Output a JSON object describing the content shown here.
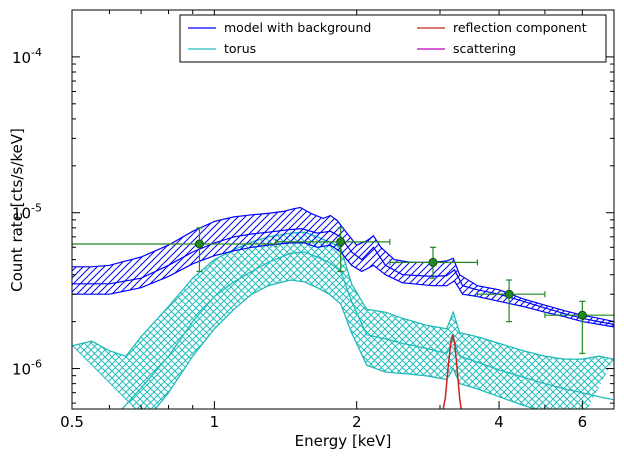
{
  "chart_data": {
    "type": "line",
    "xlabel": "Energy [keV]",
    "ylabel": "Count rate [cts/s/keV]",
    "x_scale": "log",
    "y_scale": "log",
    "xlim": [
      0.5,
      7.0
    ],
    "ylim": [
      5.5e-07,
      0.0002
    ],
    "legend_position": "top-right",
    "x_ticks": [
      {
        "value": 0.5,
        "label": "0.5"
      },
      {
        "value": 1,
        "label": "1"
      },
      {
        "value": 2,
        "label": "2"
      },
      {
        "value": 4,
        "label": "4"
      },
      {
        "value": 6,
        "label": "6"
      }
    ],
    "y_ticks": [
      {
        "value": 1e-06,
        "base": "10",
        "exp": "-6"
      },
      {
        "value": 1e-05,
        "base": "10",
        "exp": "-5"
      },
      {
        "value": 0.0001,
        "base": "10",
        "exp": "-4"
      }
    ],
    "legend": [
      {
        "label": "model with background",
        "color": "#0000ff"
      },
      {
        "label": "reflection component",
        "color": "#cc2222"
      },
      {
        "label": "torus",
        "color": "#22bbbb"
      },
      {
        "label": "scattering",
        "color": "#bb00bb"
      }
    ],
    "series": [
      {
        "name": "model with background",
        "color": "#0000ff",
        "style": "hatched band",
        "upper": [
          [
            0.5,
            4.5e-06
          ],
          [
            0.55,
            4.5e-06
          ],
          [
            0.6,
            4.6e-06
          ],
          [
            0.7,
            5.2e-06
          ],
          [
            0.8,
            6.2e-06
          ],
          [
            0.9,
            7.6e-06
          ],
          [
            1.0,
            8.8e-06
          ],
          [
            1.1,
            9.4e-06
          ],
          [
            1.2,
            9.7e-06
          ],
          [
            1.3,
            9.9e-06
          ],
          [
            1.4,
            1.02e-05
          ],
          [
            1.47,
            1.06e-05
          ],
          [
            1.52,
            1.08e-05
          ],
          [
            1.6,
            9.9e-06
          ],
          [
            1.7,
            9.2e-06
          ],
          [
            1.76,
            9.6e-06
          ],
          [
            1.82,
            8.9e-06
          ],
          [
            1.9,
            7.5e-06
          ],
          [
            2.0,
            6.2e-06
          ],
          [
            2.1,
            6.6e-06
          ],
          [
            2.17,
            7.1e-06
          ],
          [
            2.25,
            6e-06
          ],
          [
            2.4,
            5e-06
          ],
          [
            2.6,
            4.8e-06
          ],
          [
            2.9,
            4.8e-06
          ],
          [
            3.1,
            4.9e-06
          ],
          [
            3.2,
            5.1e-06
          ],
          [
            3.3,
            4e-06
          ],
          [
            3.6,
            3.4e-06
          ],
          [
            4.0,
            3.2e-06
          ],
          [
            4.5,
            2.8e-06
          ],
          [
            5.0,
            2.55e-06
          ],
          [
            5.5,
            2.35e-06
          ],
          [
            6.0,
            2.2e-06
          ],
          [
            6.5,
            2.1e-06
          ],
          [
            7.0,
            2e-06
          ]
        ],
        "lower": [
          [
            0.5,
            3e-06
          ],
          [
            0.6,
            3e-06
          ],
          [
            0.7,
            3.3e-06
          ],
          [
            0.8,
            3.9e-06
          ],
          [
            0.9,
            4.7e-06
          ],
          [
            1.0,
            5.3e-06
          ],
          [
            1.1,
            5.7e-06
          ],
          [
            1.2,
            6e-06
          ],
          [
            1.3,
            6.2e-06
          ],
          [
            1.45,
            6.4e-06
          ],
          [
            1.55,
            6.4e-06
          ],
          [
            1.65,
            6e-06
          ],
          [
            1.76,
            6.2e-06
          ],
          [
            1.85,
            5.6e-06
          ],
          [
            1.95,
            4.6e-06
          ],
          [
            2.05,
            4.2e-06
          ],
          [
            2.17,
            4.6e-06
          ],
          [
            2.3,
            4e-06
          ],
          [
            2.5,
            3.55e-06
          ],
          [
            2.9,
            3.4e-06
          ],
          [
            3.1,
            3.4e-06
          ],
          [
            3.22,
            3.65e-06
          ],
          [
            3.35,
            3e-06
          ],
          [
            3.6,
            2.9e-06
          ],
          [
            4.0,
            2.7e-06
          ],
          [
            4.5,
            2.5e-06
          ],
          [
            5.0,
            2.3e-06
          ],
          [
            5.5,
            2.15e-06
          ],
          [
            6.0,
            2e-06
          ],
          [
            6.5,
            1.92e-06
          ],
          [
            7.0,
            1.85e-06
          ]
        ],
        "middle": [
          [
            0.5,
            3.5e-06
          ],
          [
            0.6,
            3.5e-06
          ],
          [
            0.7,
            3.8e-06
          ],
          [
            0.8,
            4.6e-06
          ],
          [
            0.9,
            5.6e-06
          ],
          [
            1.0,
            6.4e-06
          ],
          [
            1.1,
            7e-06
          ],
          [
            1.2,
            7.3e-06
          ],
          [
            1.3,
            7.5e-06
          ],
          [
            1.45,
            7.8e-06
          ],
          [
            1.53,
            7.9e-06
          ],
          [
            1.65,
            7.4e-06
          ],
          [
            1.76,
            7.6e-06
          ],
          [
            1.85,
            7e-06
          ],
          [
            1.95,
            5.6e-06
          ],
          [
            2.05,
            5e-06
          ],
          [
            2.17,
            6e-06
          ],
          [
            2.3,
            4.6e-06
          ],
          [
            2.5,
            4e-06
          ],
          [
            2.9,
            3.9e-06
          ],
          [
            3.1,
            3.95e-06
          ],
          [
            3.22,
            4.3e-06
          ],
          [
            3.35,
            3.4e-06
          ],
          [
            3.6,
            3.2e-06
          ],
          [
            4.0,
            3e-06
          ],
          [
            4.5,
            2.7e-06
          ],
          [
            5.0,
            2.45e-06
          ],
          [
            5.5,
            2.25e-06
          ],
          [
            6.0,
            2.1e-06
          ],
          [
            6.5,
            2e-06
          ],
          [
            7.0,
            1.92e-06
          ]
        ]
      },
      {
        "name": "torus",
        "color": "#22bbbb",
        "style": "crosshatched band",
        "upper": [
          [
            0.5,
            1.4e-06
          ],
          [
            0.55,
            1.5e-06
          ],
          [
            0.6,
            1.3e-06
          ],
          [
            0.65,
            1.2e-06
          ],
          [
            0.7,
            1.6e-06
          ],
          [
            0.8,
            2.5e-06
          ],
          [
            0.9,
            3.8e-06
          ],
          [
            1.0,
            5e-06
          ],
          [
            1.1,
            5.8e-06
          ],
          [
            1.2,
            6.5e-06
          ],
          [
            1.3,
            7e-06
          ],
          [
            1.45,
            7.4e-06
          ],
          [
            1.55,
            7.5e-06
          ],
          [
            1.65,
            7e-06
          ],
          [
            1.75,
            6.5e-06
          ],
          [
            1.85,
            6e-06
          ],
          [
            1.95,
            3.5e-06
          ],
          [
            2.1,
            2.4e-06
          ],
          [
            2.3,
            2.3e-06
          ],
          [
            2.5,
            2.1e-06
          ],
          [
            2.8,
            1.9e-06
          ],
          [
            3.1,
            1.8e-06
          ],
          [
            3.2,
            2.3e-06
          ],
          [
            3.3,
            1.7e-06
          ],
          [
            3.6,
            1.6e-06
          ],
          [
            4.0,
            1.45e-06
          ],
          [
            4.5,
            1.3e-06
          ],
          [
            5.0,
            1.2e-06
          ],
          [
            5.5,
            1.15e-06
          ],
          [
            6.0,
            1.15e-06
          ],
          [
            6.5,
            1.2e-06
          ],
          [
            7.0,
            1.15e-06
          ]
        ],
        "lower": [
          [
            0.7,
            5e-07
          ],
          [
            0.75,
            5.5e-07
          ],
          [
            0.8,
            7e-07
          ],
          [
            0.9,
            1.2e-06
          ],
          [
            1.0,
            1.8e-06
          ],
          [
            1.1,
            2.4e-06
          ],
          [
            1.2,
            3e-06
          ],
          [
            1.3,
            3.4e-06
          ],
          [
            1.45,
            3.7e-06
          ],
          [
            1.55,
            3.6e-06
          ],
          [
            1.65,
            3.3e-06
          ],
          [
            1.75,
            3e-06
          ],
          [
            1.85,
            2.6e-06
          ],
          [
            1.95,
            1.7e-06
          ],
          [
            2.1,
            1.05e-06
          ],
          [
            2.3,
            9.5e-07
          ],
          [
            2.5,
            9.3e-07
          ],
          [
            2.8,
            9e-07
          ],
          [
            3.1,
            8.5e-07
          ],
          [
            3.2,
            1e-06
          ],
          [
            3.3,
            8e-07
          ],
          [
            3.6,
            7.4e-07
          ],
          [
            4.0,
            6.6e-07
          ],
          [
            4.5,
            5.8e-07
          ],
          [
            5.0,
            5.3e-07
          ],
          [
            5.5,
            5e-07
          ],
          [
            6.0,
            4.8e-07
          ]
        ],
        "middle": [
          [
            0.62,
            5e-07
          ],
          [
            0.7,
            7.5e-07
          ],
          [
            0.8,
            1.2e-06
          ],
          [
            0.9,
            2e-06
          ],
          [
            1.0,
            2.9e-06
          ],
          [
            1.1,
            3.6e-06
          ],
          [
            1.2,
            4.2e-06
          ],
          [
            1.3,
            4.8e-06
          ],
          [
            1.45,
            5.5e-06
          ],
          [
            1.55,
            5.6e-06
          ],
          [
            1.65,
            5.2e-06
          ],
          [
            1.75,
            4.8e-06
          ],
          [
            1.85,
            4.2e-06
          ],
          [
            1.95,
            2.7e-06
          ],
          [
            2.1,
            1.65e-06
          ],
          [
            2.3,
            1.55e-06
          ],
          [
            2.5,
            1.45e-06
          ],
          [
            2.8,
            1.35e-06
          ],
          [
            3.1,
            1.25e-06
          ],
          [
            3.2,
            1.55e-06
          ],
          [
            3.3,
            1.2e-06
          ],
          [
            3.6,
            1.1e-06
          ],
          [
            4.0,
            9.8e-07
          ],
          [
            4.5,
            8.8e-07
          ],
          [
            5.0,
            8e-07
          ],
          [
            5.5,
            7.4e-07
          ],
          [
            6.0,
            7e-07
          ],
          [
            6.5,
            6.6e-07
          ],
          [
            7.0,
            6.3e-07
          ]
        ]
      },
      {
        "name": "reflection component",
        "color": "#cc2222",
        "style": "line",
        "points": [
          [
            3.03,
            5e-07
          ],
          [
            3.08,
            6.5e-07
          ],
          [
            3.12,
            1e-06
          ],
          [
            3.16,
            1.45e-06
          ],
          [
            3.19,
            1.65e-06
          ],
          [
            3.22,
            1.5e-06
          ],
          [
            3.26,
            1e-06
          ],
          [
            3.3,
            6.5e-07
          ],
          [
            3.34,
            5e-07
          ]
        ]
      },
      {
        "name": "data",
        "color": "#228822",
        "style": "points with errorbars",
        "points": [
          {
            "x": 0.93,
            "y": 6.3e-06,
            "xlo": 0.5,
            "xhi": 1.35,
            "ylo": 4.2e-06,
            "yhi": 8e-06
          },
          {
            "x": 1.85,
            "y": 6.5e-06,
            "xlo": 1.35,
            "xhi": 2.35,
            "ylo": 4.2e-06,
            "yhi": 8e-06
          },
          {
            "x": 2.9,
            "y": 4.8e-06,
            "xlo": 2.35,
            "xhi": 3.6,
            "ylo": 3.8e-06,
            "yhi": 6e-06
          },
          {
            "x": 4.2,
            "y": 3e-06,
            "xlo": 3.6,
            "xhi": 5.0,
            "ylo": 2e-06,
            "yhi": 3.7e-06
          },
          {
            "x": 6.0,
            "y": 2.2e-06,
            "xlo": 5.0,
            "xhi": 7.0,
            "ylo": 1.25e-06,
            "yhi": 2.7e-06
          }
        ]
      }
    ]
  }
}
